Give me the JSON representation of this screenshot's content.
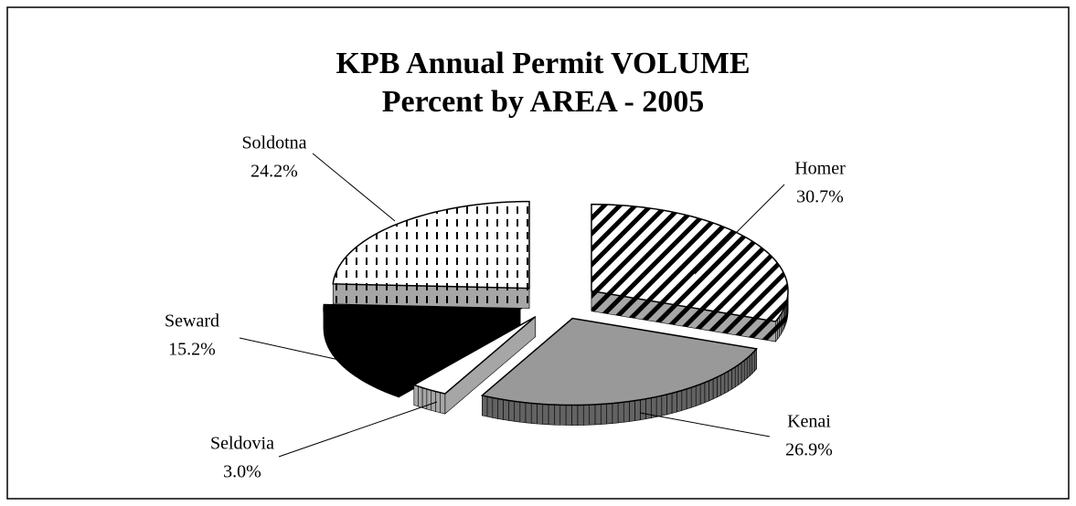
{
  "chart_data": {
    "type": "pie",
    "title": "KPB Annual Permit VOLUME",
    "subtitle": "Percent by AREA - 2005",
    "categories": [
      "Homer",
      "Kenai",
      "Seldovia",
      "Seward",
      "Soldotna"
    ],
    "values": [
      30.7,
      26.9,
      3.0,
      15.2,
      24.2
    ],
    "value_labels": [
      "30.7%",
      "26.9%",
      "3.0%",
      "15.2%",
      "24.2%"
    ],
    "colors": [
      "#ffffff",
      "#999999",
      "#ffffff",
      "#000000",
      "#ffffff"
    ],
    "patterns": [
      "diagonal-hatch",
      "none",
      "none",
      "none",
      "vertical-dash"
    ]
  }
}
